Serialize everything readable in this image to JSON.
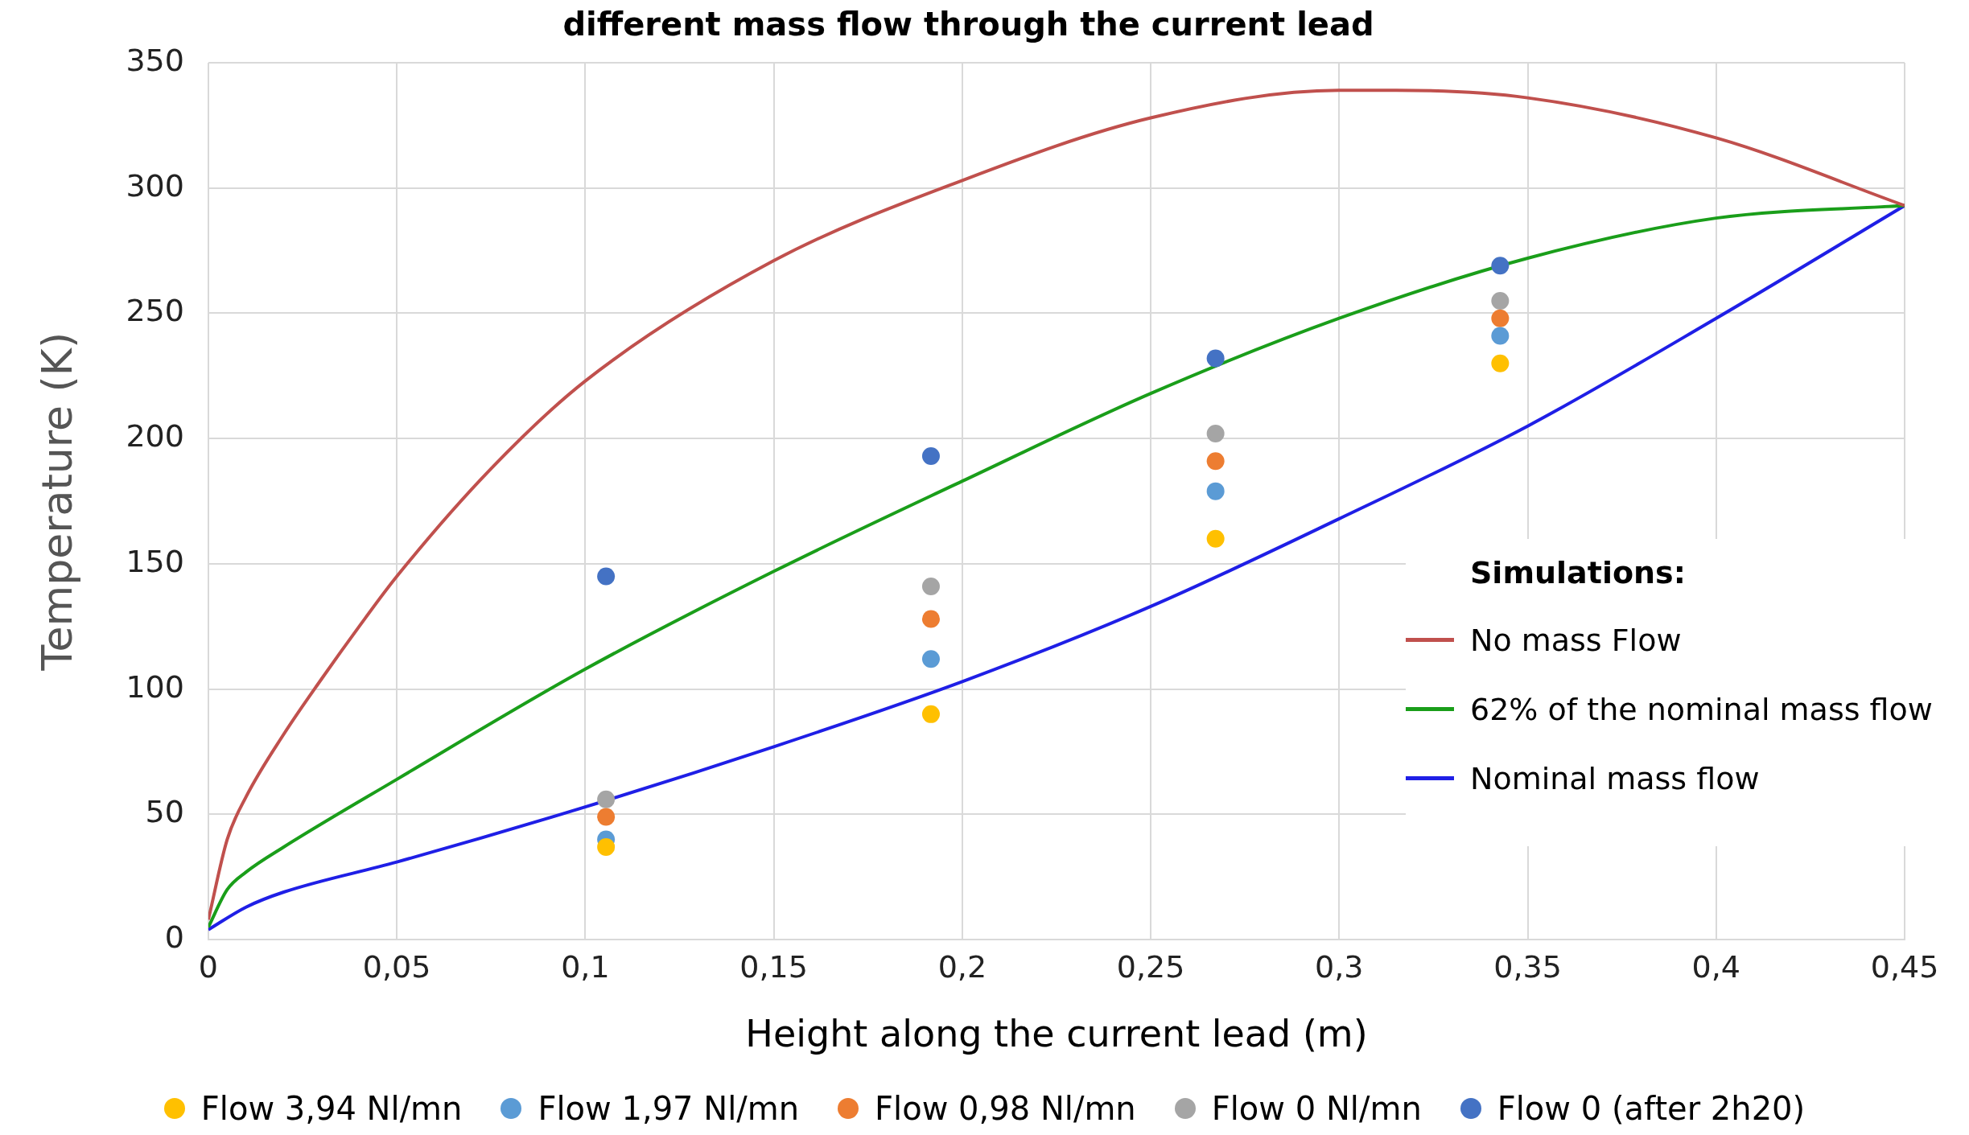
{
  "chart_data": {
    "type": "scatter",
    "title": "different mass flow through the current lead",
    "xlabel": "Height along the current lead (m)",
    "ylabel": "Temperature (K)",
    "legend_title": "Simulations:",
    "xlim": [
      0,
      0.45
    ],
    "xticks": [
      {
        "value": 0,
        "label": "0"
      },
      {
        "value": 0.05,
        "label": "0,05"
      },
      {
        "value": 0.1,
        "label": "0,1"
      },
      {
        "value": 0.15,
        "label": "0,15"
      },
      {
        "value": 0.2,
        "label": "0,2"
      },
      {
        "value": 0.25,
        "label": "0,25"
      },
      {
        "value": 0.3,
        "label": "0,3"
      },
      {
        "value": 0.35,
        "label": "0,35"
      },
      {
        "value": 0.4,
        "label": "0,4"
      },
      {
        "value": 0.45,
        "label": "0,45"
      }
    ],
    "ylim": [
      0,
      350
    ],
    "yticks": [
      0,
      50,
      100,
      150,
      200,
      250,
      300,
      350
    ],
    "grid": true,
    "legend": "bottom",
    "series": [
      {
        "name": "Flow 3,94 Nl/mn",
        "type": "scatter",
        "marker": "circle",
        "color": "#ffc000",
        "x": [
          0.1055,
          0.1917,
          0.2672,
          0.3427
        ],
        "values": [
          37,
          90,
          160,
          230
        ]
      },
      {
        "name": "Flow 1,97 Nl/mn",
        "type": "scatter",
        "marker": "circle",
        "color": "#5b9bd5",
        "x": [
          0.1055,
          0.1917,
          0.2672,
          0.3427
        ],
        "values": [
          40,
          112,
          179,
          241
        ]
      },
      {
        "name": "Flow 0,98 Nl/mn",
        "type": "scatter",
        "marker": "circle",
        "color": "#ed7d31",
        "x": [
          0.1055,
          0.1917,
          0.2672,
          0.3427
        ],
        "values": [
          49,
          128,
          191,
          248
        ]
      },
      {
        "name": "Flow 0 Nl/mn",
        "type": "scatter",
        "marker": "circle",
        "color": "#a5a5a5",
        "x": [
          0.1055,
          0.1917,
          0.2672,
          0.3427
        ],
        "values": [
          56,
          141,
          202,
          255
        ]
      },
      {
        "name": "Flow 0 (after 2h20)",
        "type": "scatter",
        "marker": "circle",
        "color": "#4472c4",
        "x": [
          0.1055,
          0.1917,
          0.2672,
          0.3427
        ],
        "values": [
          145,
          193,
          232,
          269
        ]
      },
      {
        "name": "No mass Flow",
        "type": "line",
        "marker": "none",
        "color": "#c0504d",
        "x": [
          0,
          0.005,
          0.01,
          0.02,
          0.03,
          0.04,
          0.05,
          0.075,
          0.1,
          0.15,
          0.2,
          0.25,
          0.3,
          0.315,
          0.35,
          0.4,
          0.45
        ],
        "values": [
          8,
          40,
          57,
          82,
          104,
          125,
          145,
          188,
          223,
          271,
          303,
          328,
          339,
          339,
          336,
          320,
          293
        ]
      },
      {
        "name": "62% of the nominal mass flow",
        "type": "line",
        "marker": "none",
        "color": "#1a9e1a",
        "x": [
          0,
          0.005,
          0.01,
          0.02,
          0.05,
          0.1,
          0.15,
          0.2,
          0.25,
          0.3,
          0.35,
          0.4,
          0.45
        ],
        "values": [
          5,
          20,
          27,
          37,
          64,
          108,
          147,
          183,
          218,
          248,
          272,
          288,
          293
        ]
      },
      {
        "name": "Nominal mass flow",
        "type": "line",
        "marker": "none",
        "color": "#1f1fe6",
        "x": [
          0,
          0.01,
          0.02,
          0.05,
          0.1,
          0.15,
          0.2,
          0.25,
          0.3,
          0.35,
          0.4,
          0.45
        ],
        "values": [
          4,
          13,
          19,
          31,
          53,
          77,
          103,
          133,
          168,
          205,
          248,
          293
        ]
      }
    ]
  }
}
